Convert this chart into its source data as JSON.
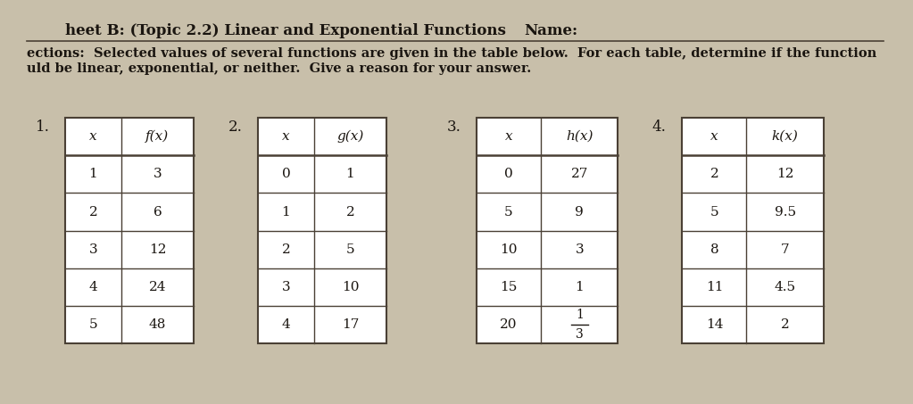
{
  "title_left": "heet B: (Topic 2.2) Linear and Exponential Functions",
  "title_right": "Name:",
  "instr_line1": "ections:  Selected values of several functions are given in the table below.  For each table, determine if the function",
  "instr_line2": "uld be linear, exponential, or neither.  Give a reason for your answer.",
  "bg_color": "#c8bfaa",
  "paper_color": "#ede8dc",
  "text_color": "#1a1510",
  "table_line_color": "#4a4035",
  "table1": {
    "number": "1.",
    "headers": [
      "x",
      "f(x)"
    ],
    "rows": [
      [
        "1",
        "3"
      ],
      [
        "2",
        "6"
      ],
      [
        "3",
        "12"
      ],
      [
        "4",
        "24"
      ],
      [
        "5",
        "48"
      ]
    ]
  },
  "table2": {
    "number": "2.",
    "headers": [
      "x",
      "g(x)"
    ],
    "rows": [
      [
        "0",
        "1"
      ],
      [
        "1",
        "2"
      ],
      [
        "2",
        "5"
      ],
      [
        "3",
        "10"
      ],
      [
        "4",
        "17"
      ]
    ]
  },
  "table3": {
    "number": "3.",
    "headers": [
      "x",
      "h(x)"
    ],
    "rows": [
      [
        "0",
        "27"
      ],
      [
        "5",
        "9"
      ],
      [
        "10",
        "3"
      ],
      [
        "15",
        "1"
      ],
      [
        "20",
        "1/3"
      ]
    ]
  },
  "table4": {
    "number": "4.",
    "headers": [
      "x",
      "k(x)"
    ],
    "rows": [
      [
        "2",
        "12"
      ],
      [
        "5",
        "9.5"
      ],
      [
        "8",
        "7"
      ],
      [
        "11",
        "4.5"
      ],
      [
        "14",
        "2"
      ]
    ]
  },
  "fs_title": 12,
  "fs_instr": 10.5,
  "fs_num": 12,
  "fs_table_hdr": 11,
  "fs_table_data": 11
}
